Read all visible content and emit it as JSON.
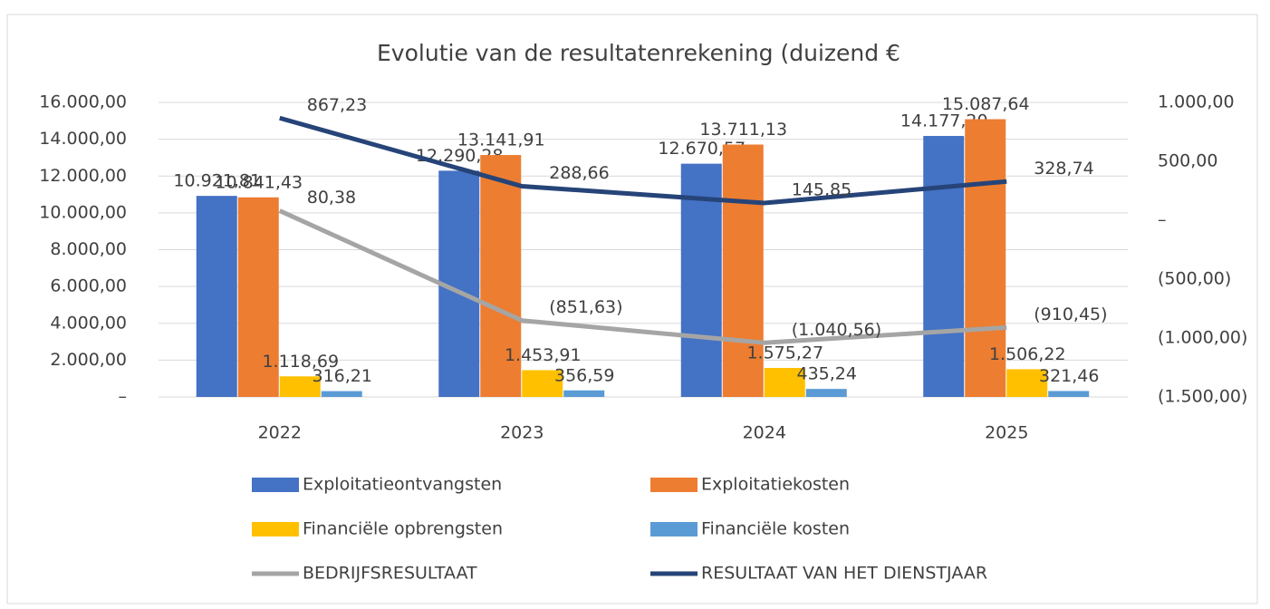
{
  "chart_data": {
    "type": "bar",
    "title": "Evolutie van de resultatenrekening (duizend €",
    "categories": [
      "2022",
      "2023",
      "2024",
      "2025"
    ],
    "series": [
      {
        "name": "Exploitatieontvangsten",
        "color": "#4472c4",
        "values": [
          10921.81,
          12290.28,
          12670.57,
          14177.2
        ],
        "value_labels": [
          "10.921,81",
          "12.290,28",
          "12.670,57",
          "14.177,20"
        ]
      },
      {
        "name": "Exploitatiekosten",
        "color": "#ed7d31",
        "values": [
          10841.43,
          13141.91,
          13711.13,
          15087.64
        ],
        "value_labels": [
          "10.841,43",
          "13.141,91",
          "13.711,13",
          "15.087,64"
        ]
      },
      {
        "name": "Financiële opbrengsten",
        "color": "#ffc000",
        "values": [
          1118.69,
          1453.91,
          1575.27,
          1506.22
        ],
        "value_labels": [
          "1.118,69",
          "1.453,91",
          "1.575,27",
          "1.506,22"
        ]
      },
      {
        "name": "Financiële kosten",
        "color": "#5b9bd5",
        "values": [
          316.21,
          356.59,
          435.24,
          321.46
        ],
        "value_labels": [
          "316,21",
          "356,59",
          "435,24",
          "321,46"
        ]
      },
      {
        "name": "BEDRIJFSRESULTAAT",
        "color": "#a5a5a5",
        "type": "line",
        "axis": "y2",
        "values": [
          80.38,
          -851.63,
          -1040.56,
          -910.45
        ],
        "value_labels": [
          "80,38",
          "(851,63)",
          "(1.040,56)",
          "(910,45)"
        ]
      },
      {
        "name": "RESULTAAT VAN HET DIENSTJAAR",
        "color": "#264478",
        "type": "line",
        "axis": "y2",
        "values": [
          867.23,
          288.66,
          145.85,
          328.74
        ],
        "value_labels": [
          "867,23",
          "288,66",
          "145,85",
          "328,74"
        ]
      }
    ],
    "ylim": [
      0,
      16000
    ],
    "yticks": [
      {
        "value": 0,
        "label": "–"
      },
      {
        "value": 2000,
        "label": "2.000,00"
      },
      {
        "value": 4000,
        "label": "4.000,00"
      },
      {
        "value": 6000,
        "label": "6.000,00"
      },
      {
        "value": 8000,
        "label": "8.000,00"
      },
      {
        "value": 10000,
        "label": "10.000,00"
      },
      {
        "value": 12000,
        "label": "12.000,00"
      },
      {
        "value": 14000,
        "label": "14.000,00"
      },
      {
        "value": 16000,
        "label": "16.000,00"
      }
    ],
    "y2lim": [
      -1500,
      1000
    ],
    "y2ticks": [
      {
        "value": -1500,
        "label": "(1.500,00)"
      },
      {
        "value": -1000,
        "label": "(1.000,00)"
      },
      {
        "value": -500,
        "label": "(500,00)"
      },
      {
        "value": 0,
        "label": "–"
      },
      {
        "value": 500,
        "label": "500,00"
      },
      {
        "value": 1000,
        "label": "1.000,00"
      }
    ],
    "grid": true
  }
}
